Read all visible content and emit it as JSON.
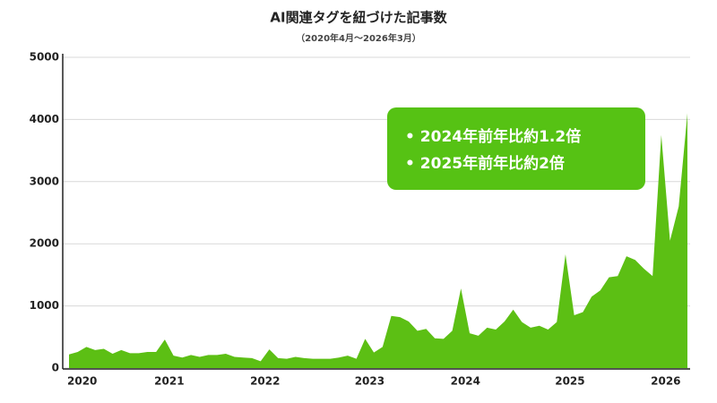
{
  "chart_data": {
    "type": "area",
    "title": "AI関連タグを紐づけた記事数",
    "subtitle": "（2020年4月〜2026年3月）",
    "annotations": [
      "• 2024年前年比約1.2倍",
      "• 2025年前年比約2倍"
    ],
    "categories": [
      "2020",
      null,
      null,
      null,
      null,
      null,
      null,
      null,
      null,
      null,
      "2021",
      null,
      null,
      null,
      null,
      null,
      null,
      null,
      null,
      null,
      null,
      "2022",
      null,
      null,
      null,
      null,
      null,
      null,
      null,
      null,
      null,
      null,
      null,
      "2023",
      null,
      null,
      null,
      null,
      null,
      null,
      null,
      null,
      null,
      null,
      "2024",
      null,
      null,
      null,
      null,
      null,
      null,
      null,
      null,
      null,
      null,
      null,
      "2025",
      null,
      null,
      null,
      null,
      null,
      null,
      null,
      null,
      null,
      null,
      "2026",
      null,
      null,
      null,
      null
    ],
    "values": [
      220,
      260,
      340,
      290,
      310,
      230,
      290,
      240,
      240,
      260,
      260,
      460,
      200,
      170,
      210,
      180,
      210,
      210,
      230,
      180,
      170,
      160,
      110,
      300,
      160,
      150,
      180,
      160,
      150,
      150,
      150,
      170,
      200,
      150,
      470,
      250,
      340,
      840,
      820,
      750,
      600,
      630,
      480,
      470,
      600,
      1280,
      560,
      520,
      650,
      620,
      750,
      940,
      740,
      650,
      680,
      620,
      740,
      1830,
      850,
      900,
      1150,
      1250,
      1460,
      1480,
      1800,
      1740,
      1600,
      1480,
      3750,
      2050,
      2600,
      4100
    ],
    "color": "#5cbf14",
    "ylim": [
      0,
      5000
    ],
    "yticks": [
      0,
      1000,
      2000,
      3000,
      4000,
      5000
    ],
    "grid": true
  }
}
